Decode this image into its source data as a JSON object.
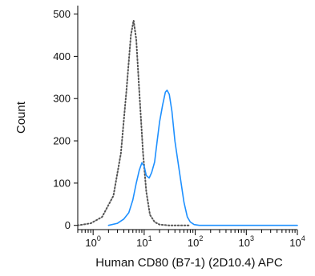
{
  "chart_data": {
    "type": "line",
    "xlabel": "Human CD80 (B7-1) (2D10.4) APC",
    "ylabel": "Count",
    "x_scale": "log",
    "xlim": [
      0.5,
      10000
    ],
    "ylim": [
      -10,
      520
    ],
    "y_ticks": [
      "0",
      "100",
      "200",
      "300",
      "400",
      "500"
    ],
    "x_ticks": [
      {
        "base": "10",
        "exp": "0",
        "value": 1
      },
      {
        "base": "10",
        "exp": "1",
        "value": 10
      },
      {
        "base": "10",
        "exp": "2",
        "value": 100
      },
      {
        "base": "10",
        "exp": "3",
        "value": 1000
      },
      {
        "base": "10",
        "exp": "4",
        "value": 10000
      }
    ],
    "grid": false,
    "series": [
      {
        "style": "dotted",
        "color": "#555555",
        "points": [
          [
            0.5,
            0
          ],
          [
            0.9,
            5
          ],
          [
            1.5,
            20
          ],
          [
            2.5,
            70
          ],
          [
            3.5,
            170
          ],
          [
            4.5,
            320
          ],
          [
            5.5,
            450
          ],
          [
            6.2,
            485
          ],
          [
            7.0,
            440
          ],
          [
            8.0,
            320
          ],
          [
            9.5,
            170
          ],
          [
            11,
            80
          ],
          [
            13,
            25
          ],
          [
            16,
            8
          ],
          [
            20,
            2
          ],
          [
            30,
            0
          ],
          [
            80,
            0
          ]
        ]
      },
      {
        "style": "solid",
        "color": "#1e90ff",
        "points": [
          [
            2,
            0
          ],
          [
            3,
            5
          ],
          [
            4,
            15
          ],
          [
            5,
            30
          ],
          [
            6,
            60
          ],
          [
            7,
            100
          ],
          [
            8,
            130
          ],
          [
            9,
            148
          ],
          [
            10,
            140
          ],
          [
            11,
            118
          ],
          [
            12.5,
            112
          ],
          [
            14,
            125
          ],
          [
            16,
            150
          ],
          [
            18,
            200
          ],
          [
            20,
            245
          ],
          [
            23,
            285
          ],
          [
            26,
            315
          ],
          [
            28,
            320
          ],
          [
            31,
            310
          ],
          [
            35,
            270
          ],
          [
            40,
            200
          ],
          [
            50,
            120
          ],
          [
            60,
            55
          ],
          [
            70,
            20
          ],
          [
            80,
            8
          ],
          [
            95,
            2
          ],
          [
            120,
            0
          ],
          [
            10000,
            0
          ]
        ]
      }
    ]
  }
}
